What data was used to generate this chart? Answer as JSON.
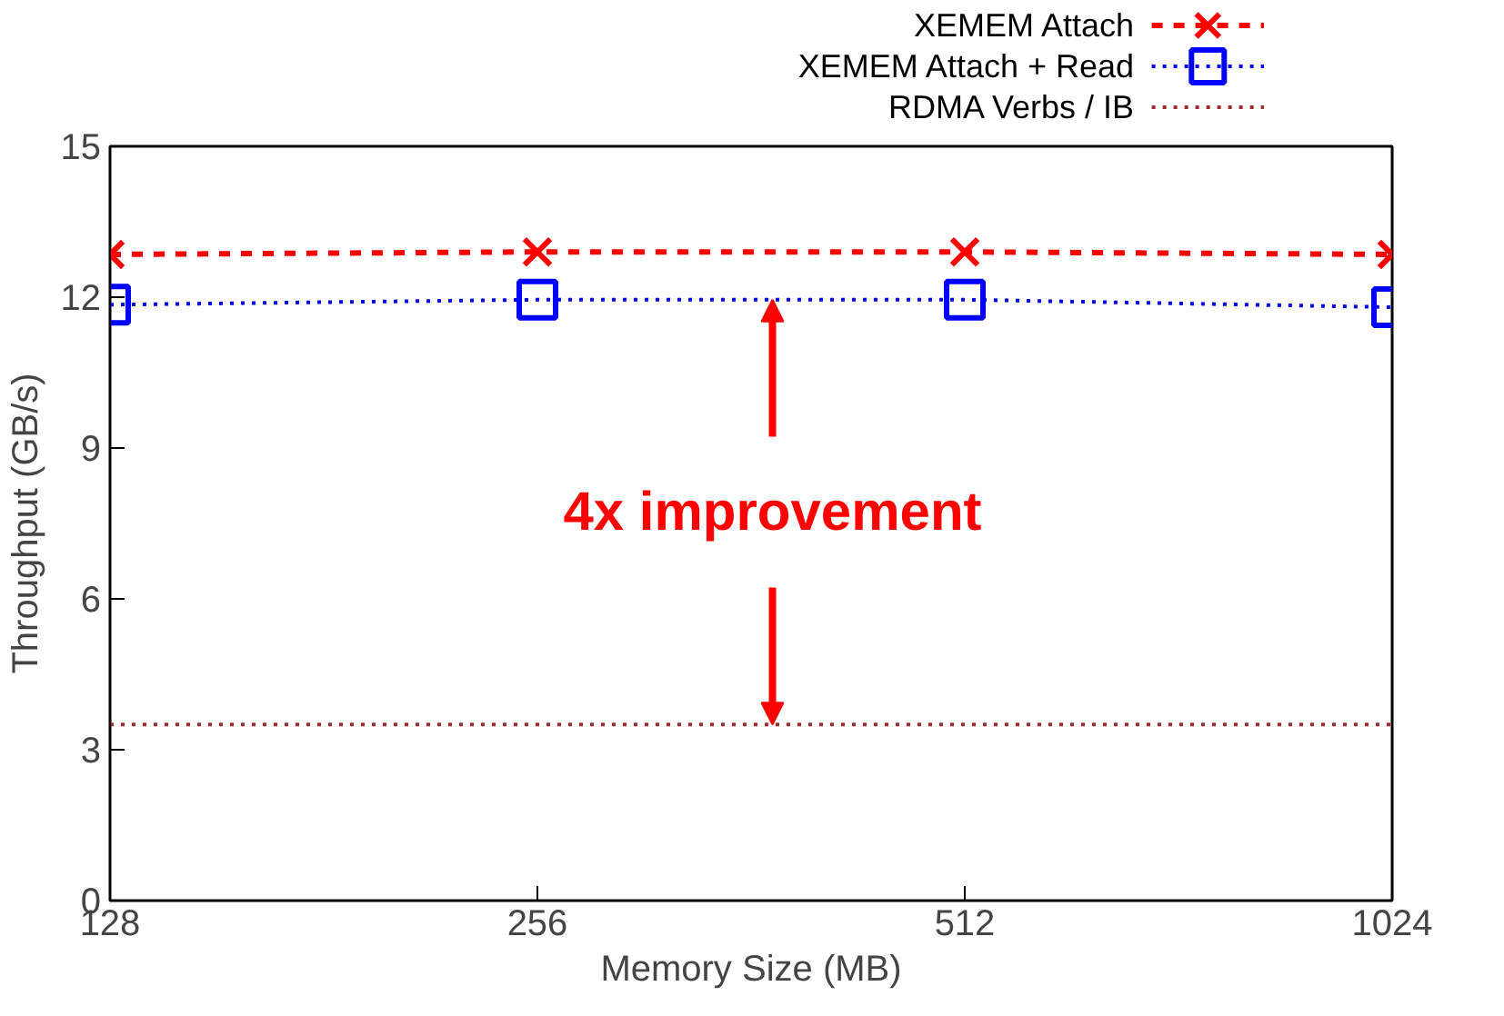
{
  "chart_data": {
    "type": "line",
    "xlabel": "Memory Size (MB)",
    "ylabel": "Throughput (GB/s)",
    "categories": [
      "128",
      "256",
      "512",
      "1024"
    ],
    "ylim": [
      0,
      15
    ],
    "yticks": [
      0,
      3,
      6,
      9,
      12,
      15
    ],
    "grid": false,
    "legend": "top right",
    "series": [
      {
        "name": "XEMEM Attach",
        "color": "#ff0000",
        "values": [
          12.85,
          12.9,
          12.9,
          12.85
        ],
        "marker": "cross",
        "line_style": "dashed"
      },
      {
        "name": "XEMEM Attach + Read",
        "color": "#0000ff",
        "values": [
          11.85,
          11.95,
          11.95,
          11.8
        ],
        "marker": "square",
        "line_style": "dotted"
      },
      {
        "name": "RDMA Verbs / IB",
        "color": "#a52a2a",
        "values": [
          3.5,
          3.5,
          3.5,
          3.5
        ],
        "marker": "none",
        "line_style": "dotted"
      }
    ],
    "annotations": [
      {
        "text": "4x improvement",
        "y": 11.95
      }
    ]
  }
}
